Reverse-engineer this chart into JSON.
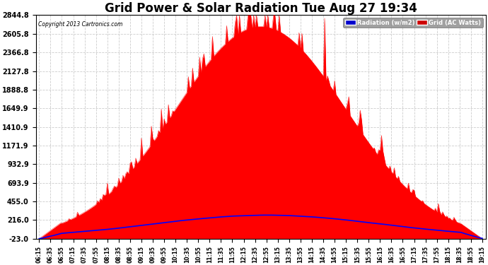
{
  "title": "Grid Power & Solar Radiation Tue Aug 27 19:34",
  "copyright": "Copyright 2013 Cartronics.com",
  "legend_labels": [
    "Radiation (w/m2)",
    "Grid (AC Watts)"
  ],
  "legend_blue_bg": "#0000cc",
  "legend_red_bg": "#cc0000",
  "yticks": [
    -23.0,
    216.0,
    455.0,
    693.9,
    932.9,
    1171.9,
    1410.9,
    1649.9,
    1888.8,
    2127.8,
    2366.8,
    2605.8,
    2844.8
  ],
  "ymin": -23.0,
  "ymax": 2844.8,
  "background_color": "#ffffff",
  "grid_color": "#cccccc",
  "title_fontsize": 12,
  "x_times": [
    "06:15",
    "06:35",
    "06:55",
    "07:15",
    "07:35",
    "07:55",
    "08:15",
    "08:35",
    "08:55",
    "09:15",
    "09:35",
    "09:55",
    "10:15",
    "10:35",
    "10:55",
    "11:15",
    "11:35",
    "11:55",
    "12:15",
    "12:35",
    "12:55",
    "13:15",
    "13:35",
    "13:55",
    "14:15",
    "14:35",
    "14:55",
    "15:15",
    "15:35",
    "15:55",
    "16:15",
    "16:35",
    "16:55",
    "17:15",
    "17:35",
    "17:55",
    "18:15",
    "18:35",
    "18:55",
    "19:15"
  ],
  "grid_fill_color": "#ff0000",
  "radiation_line_color": "#0000ff",
  "figwidth": 6.9,
  "figheight": 3.75,
  "dpi": 100
}
